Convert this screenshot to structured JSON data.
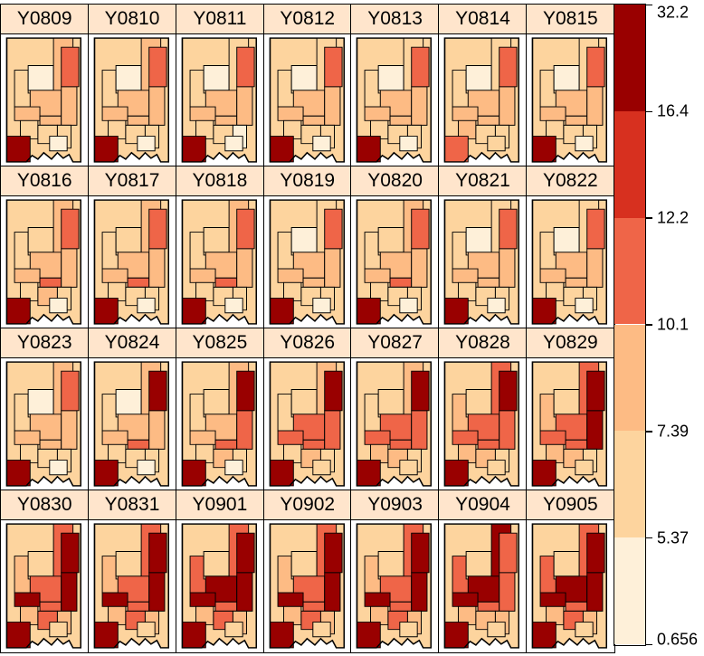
{
  "chart_data": {
    "type": "heatmap",
    "panels": [
      "Y0809",
      "Y0810",
      "Y0811",
      "Y0812",
      "Y0813",
      "Y0814",
      "Y0815",
      "Y0816",
      "Y0817",
      "Y0818",
      "Y0819",
      "Y0820",
      "Y0821",
      "Y0822",
      "Y0823",
      "Y0824",
      "Y0825",
      "Y0826",
      "Y0827",
      "Y0828",
      "Y0829",
      "Y0830",
      "Y0831",
      "Y0901",
      "Y0902",
      "Y0903",
      "Y0904",
      "Y0905"
    ],
    "legend": {
      "breaks": [
        "0.656",
        "5.37",
        "7.39",
        "10.1",
        "12.2",
        "16.4",
        "32.2"
      ],
      "colors": [
        "#fef0d9",
        "#fdd49e",
        "#fdbb84",
        "#ef6548",
        "#d7301f",
        "#990000"
      ]
    },
    "region_classes": [
      [
        1,
        0,
        2,
        2,
        2,
        2,
        2,
        3,
        1,
        1,
        1,
        0,
        5
      ],
      [
        1,
        0,
        2,
        2,
        2,
        2,
        2,
        3,
        1,
        1,
        1,
        0,
        5
      ],
      [
        1,
        0,
        1,
        2,
        2,
        2,
        2,
        3,
        1,
        1,
        0,
        0,
        5
      ],
      [
        1,
        0,
        1,
        2,
        2,
        2,
        2,
        3,
        1,
        1,
        1,
        0,
        5
      ],
      [
        1,
        0,
        1,
        2,
        2,
        2,
        2,
        3,
        1,
        1,
        1,
        0,
        5
      ],
      [
        1,
        0,
        1,
        2,
        2,
        2,
        2,
        3,
        2,
        1,
        1,
        1,
        3
      ],
      [
        1,
        0,
        1,
        2,
        2,
        2,
        2,
        3,
        1,
        1,
        1,
        0,
        5
      ],
      [
        1,
        1,
        2,
        2,
        2,
        3,
        2,
        3,
        1,
        2,
        1,
        0,
        5
      ],
      [
        1,
        1,
        2,
        2,
        2,
        3,
        2,
        3,
        1,
        1,
        1,
        0,
        5
      ],
      [
        1,
        1,
        2,
        2,
        2,
        3,
        2,
        3,
        1,
        1,
        1,
        0,
        5
      ],
      [
        1,
        0,
        1,
        2,
        2,
        2,
        2,
        3,
        1,
        1,
        1,
        0,
        5
      ],
      [
        1,
        1,
        2,
        2,
        2,
        3,
        2,
        3,
        1,
        1,
        1,
        0,
        5
      ],
      [
        1,
        0,
        1,
        2,
        2,
        2,
        2,
        3,
        1,
        1,
        1,
        0,
        5
      ],
      [
        1,
        0,
        1,
        2,
        2,
        2,
        2,
        3,
        1,
        1,
        1,
        0,
        5
      ],
      [
        1,
        0,
        2,
        2,
        2,
        2,
        2,
        3,
        1,
        1,
        1,
        0,
        5
      ],
      [
        1,
        0,
        2,
        2,
        2,
        3,
        2,
        5,
        1,
        1,
        1,
        0,
        5
      ],
      [
        1,
        1,
        2,
        2,
        2,
        3,
        3,
        5,
        1,
        2,
        1,
        0,
        5
      ],
      [
        1,
        1,
        2,
        3,
        3,
        3,
        3,
        5,
        1,
        2,
        1,
        1,
        5
      ],
      [
        1,
        1,
        2,
        3,
        3,
        3,
        3,
        5,
        2,
        2,
        1,
        1,
        5
      ],
      [
        2,
        1,
        3,
        3,
        3,
        3,
        3,
        5,
        2,
        2,
        1,
        1,
        5
      ],
      [
        2,
        1,
        3,
        3,
        3,
        3,
        5,
        5,
        2,
        2,
        1,
        1,
        5
      ],
      [
        2,
        1,
        3,
        3,
        5,
        3,
        5,
        5,
        2,
        3,
        2,
        1,
        5
      ],
      [
        2,
        1,
        3,
        3,
        5,
        3,
        5,
        5,
        2,
        3,
        2,
        1,
        5
      ],
      [
        3,
        1,
        3,
        5,
        5,
        3,
        5,
        5,
        2,
        3,
        2,
        1,
        5
      ],
      [
        2,
        1,
        3,
        3,
        5,
        3,
        5,
        5,
        2,
        3,
        2,
        1,
        5
      ],
      [
        2,
        1,
        3,
        3,
        5,
        3,
        5,
        5,
        2,
        3,
        2,
        1,
        5
      ],
      [
        3,
        1,
        5,
        5,
        5,
        3,
        3,
        3,
        2,
        2,
        2,
        1,
        5
      ],
      [
        3,
        1,
        3,
        5,
        5,
        3,
        5,
        5,
        2,
        3,
        2,
        1,
        5
      ]
    ]
  }
}
